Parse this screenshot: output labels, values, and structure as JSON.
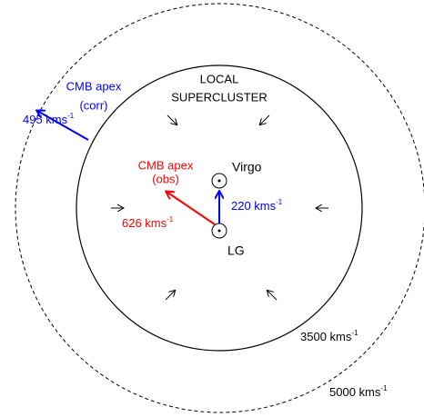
{
  "labels": {
    "local": "LOCAL",
    "supercluster": "SUPERCLUSTER",
    "cmb_corr_1": "CMB apex",
    "cmb_corr_2": "(corr)",
    "v495": {
      "text": "495 kms",
      "sup": "-1"
    },
    "cmb_obs_1": "CMB apex",
    "cmb_obs_2": "(obs)",
    "virgo": "Virgo",
    "v626": {
      "text": "626 kms",
      "sup": "-1"
    },
    "v220": {
      "text": "220 kms",
      "sup": "-1"
    },
    "lg": "LG",
    "r3500": {
      "text": "3500 kms",
      "sup": "-1"
    },
    "r5000": {
      "text": "5000 kms",
      "sup": "-1"
    }
  }
}
